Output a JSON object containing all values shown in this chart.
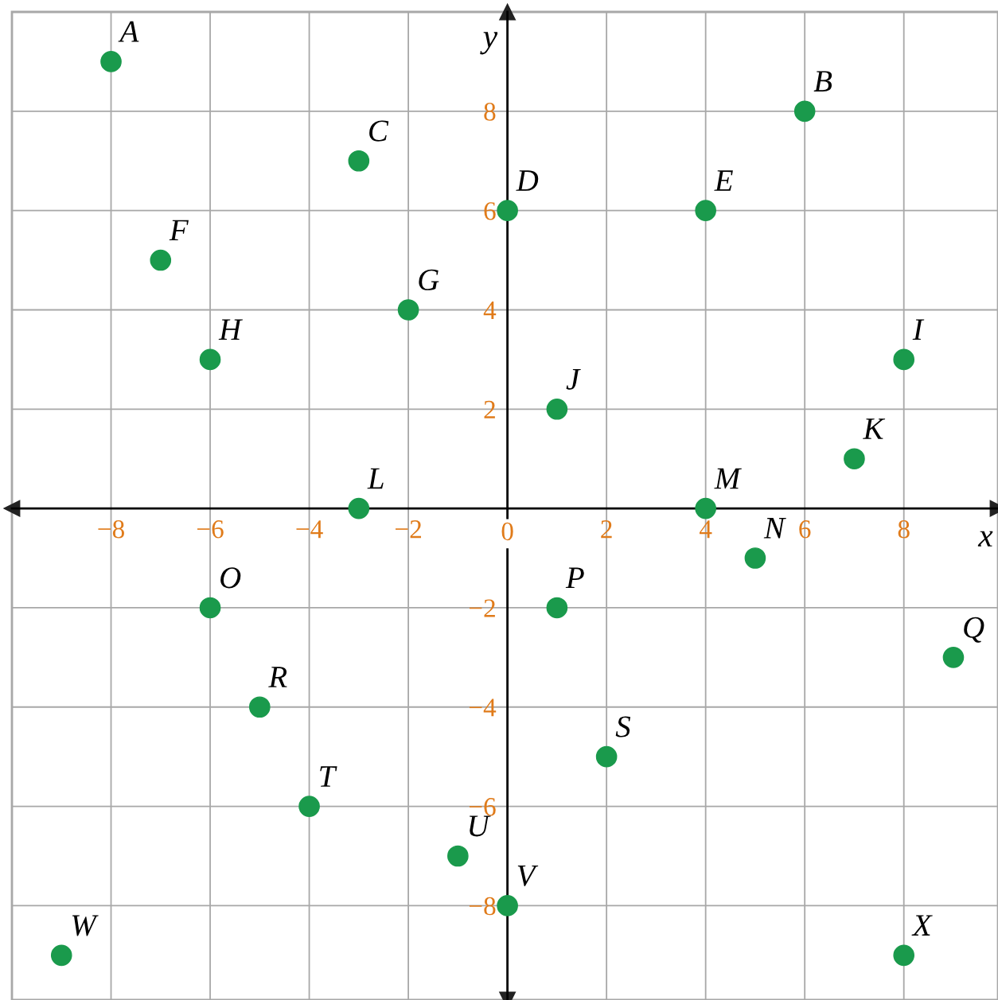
{
  "chart_data": {
    "type": "scatter",
    "x": [
      -8,
      6,
      -3,
      0,
      4,
      -7,
      -2,
      -6,
      8,
      1,
      7,
      -3,
      4,
      5,
      -6,
      1,
      9,
      -5,
      2,
      -4,
      -1,
      0,
      -9,
      8
    ],
    "values": [
      9,
      8,
      7,
      6,
      6,
      5,
      4,
      3,
      3,
      2,
      1,
      0,
      0,
      -1,
      -2,
      -2,
      -3,
      -4,
      -5,
      -6,
      -7,
      -8,
      -9,
      -9
    ],
    "color": "#1a9a4c",
    "marker": "circle",
    "xlabel": "x",
    "ylabel": "y",
    "xlim": [
      -10,
      9.9
    ],
    "ylim": [
      -9.9,
      10
    ],
    "xticks": [
      -8,
      -6,
      -4,
      -2,
      0,
      2,
      4,
      6,
      8
    ],
    "yticks": [
      -8,
      -6,
      -4,
      -2,
      2,
      4,
      6,
      8
    ],
    "grid": true,
    "annotations": [
      {
        "text": "A",
        "x": -8,
        "y": 9
      },
      {
        "text": "B",
        "x": 6,
        "y": 8
      },
      {
        "text": "C",
        "x": -3,
        "y": 7
      },
      {
        "text": "D",
        "x": 0,
        "y": 6
      },
      {
        "text": "E",
        "x": 4,
        "y": 6
      },
      {
        "text": "F",
        "x": -7,
        "y": 5
      },
      {
        "text": "G",
        "x": -2,
        "y": 4
      },
      {
        "text": "H",
        "x": -6,
        "y": 3
      },
      {
        "text": "I",
        "x": 8,
        "y": 3
      },
      {
        "text": "J",
        "x": 1,
        "y": 2
      },
      {
        "text": "K",
        "x": 7,
        "y": 1
      },
      {
        "text": "L",
        "x": -3,
        "y": 0
      },
      {
        "text": "M",
        "x": 4,
        "y": 0
      },
      {
        "text": "N",
        "x": 5,
        "y": -1
      },
      {
        "text": "O",
        "x": -6,
        "y": -2
      },
      {
        "text": "P",
        "x": 1,
        "y": -2
      },
      {
        "text": "Q",
        "x": 9,
        "y": -3
      },
      {
        "text": "R",
        "x": -5,
        "y": -4
      },
      {
        "text": "S",
        "x": 2,
        "y": -5
      },
      {
        "text": "T",
        "x": -4,
        "y": -6
      },
      {
        "text": "U",
        "x": -1,
        "y": -7
      },
      {
        "text": "V",
        "x": 0,
        "y": -8
      },
      {
        "text": "W",
        "x": -9,
        "y": -9
      },
      {
        "text": "X",
        "x": 8,
        "y": -9
      }
    ]
  }
}
